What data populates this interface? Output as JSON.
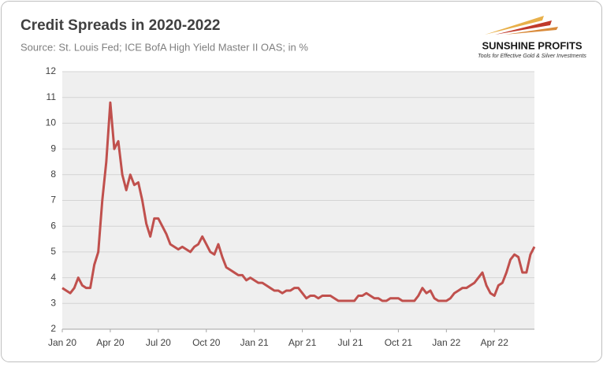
{
  "chart_data": {
    "type": "line",
    "title": "Credit Spreads in 2020-2022",
    "subtitle": "Source: St. Louis Fed; ICE BofA High Yield Master II OAS; in %",
    "logo": {
      "name": "SUNSHINE PROFITS",
      "tagline": "Tools for Effective Gold & Silver Investments"
    },
    "categories": [
      "Jan 20",
      null,
      null,
      null,
      null,
      null,
      null,
      null,
      null,
      null,
      null,
      null,
      "Apr 20",
      null,
      null,
      null,
      null,
      null,
      null,
      null,
      null,
      null,
      null,
      null,
      "Jul 20",
      null,
      null,
      null,
      null,
      null,
      null,
      null,
      null,
      null,
      null,
      null,
      "Oct 20",
      null,
      null,
      null,
      null,
      null,
      null,
      null,
      null,
      null,
      null,
      null,
      "Jan 21",
      null,
      null,
      null,
      null,
      null,
      null,
      null,
      null,
      null,
      null,
      null,
      "Apr 21",
      null,
      null,
      null,
      null,
      null,
      null,
      null,
      null,
      null,
      null,
      null,
      "Jul 21",
      null,
      null,
      null,
      null,
      null,
      null,
      null,
      null,
      null,
      null,
      null,
      "Oct 21",
      null,
      null,
      null,
      null,
      null,
      null,
      null,
      null,
      null,
      null,
      null,
      "Jan 22",
      null,
      null,
      null,
      null,
      null,
      null,
      null,
      null,
      null,
      null,
      null,
      "Apr 22",
      null,
      null,
      null,
      null,
      null,
      null,
      null,
      null,
      null,
      null
    ],
    "series": [
      {
        "color": "#c0504d",
        "values": [
          3.6,
          3.5,
          3.4,
          3.6,
          4.0,
          3.7,
          3.6,
          3.6,
          4.5,
          5.0,
          7.0,
          8.5,
          10.8,
          9.0,
          9.3,
          8.0,
          7.4,
          8.0,
          7.6,
          7.7,
          7.0,
          6.1,
          5.6,
          6.3,
          6.3,
          6.0,
          5.7,
          5.3,
          5.2,
          5.1,
          5.2,
          5.1,
          5.0,
          5.2,
          5.3,
          5.6,
          5.3,
          5.0,
          4.9,
          5.3,
          4.8,
          4.4,
          4.3,
          4.2,
          4.1,
          4.1,
          3.9,
          4.0,
          3.9,
          3.8,
          3.8,
          3.7,
          3.6,
          3.5,
          3.5,
          3.4,
          3.5,
          3.5,
          3.6,
          3.6,
          3.4,
          3.2,
          3.3,
          3.3,
          3.2,
          3.3,
          3.3,
          3.3,
          3.2,
          3.1,
          3.1,
          3.1,
          3.1,
          3.1,
          3.3,
          3.3,
          3.4,
          3.3,
          3.2,
          3.2,
          3.1,
          3.1,
          3.2,
          3.2,
          3.2,
          3.1,
          3.1,
          3.1,
          3.1,
          3.3,
          3.6,
          3.4,
          3.5,
          3.2,
          3.1,
          3.1,
          3.1,
          3.2,
          3.4,
          3.5,
          3.6,
          3.6,
          3.7,
          3.8,
          4.0,
          4.2,
          3.7,
          3.4,
          3.3,
          3.7,
          3.8,
          4.2,
          4.7,
          4.9,
          4.8,
          4.2,
          4.2,
          4.9,
          5.2
        ]
      }
    ],
    "ylim": [
      2,
      12
    ],
    "yticks": [
      2,
      3,
      4,
      5,
      6,
      7,
      8,
      9,
      10,
      11,
      12
    ],
    "grid": true
  }
}
